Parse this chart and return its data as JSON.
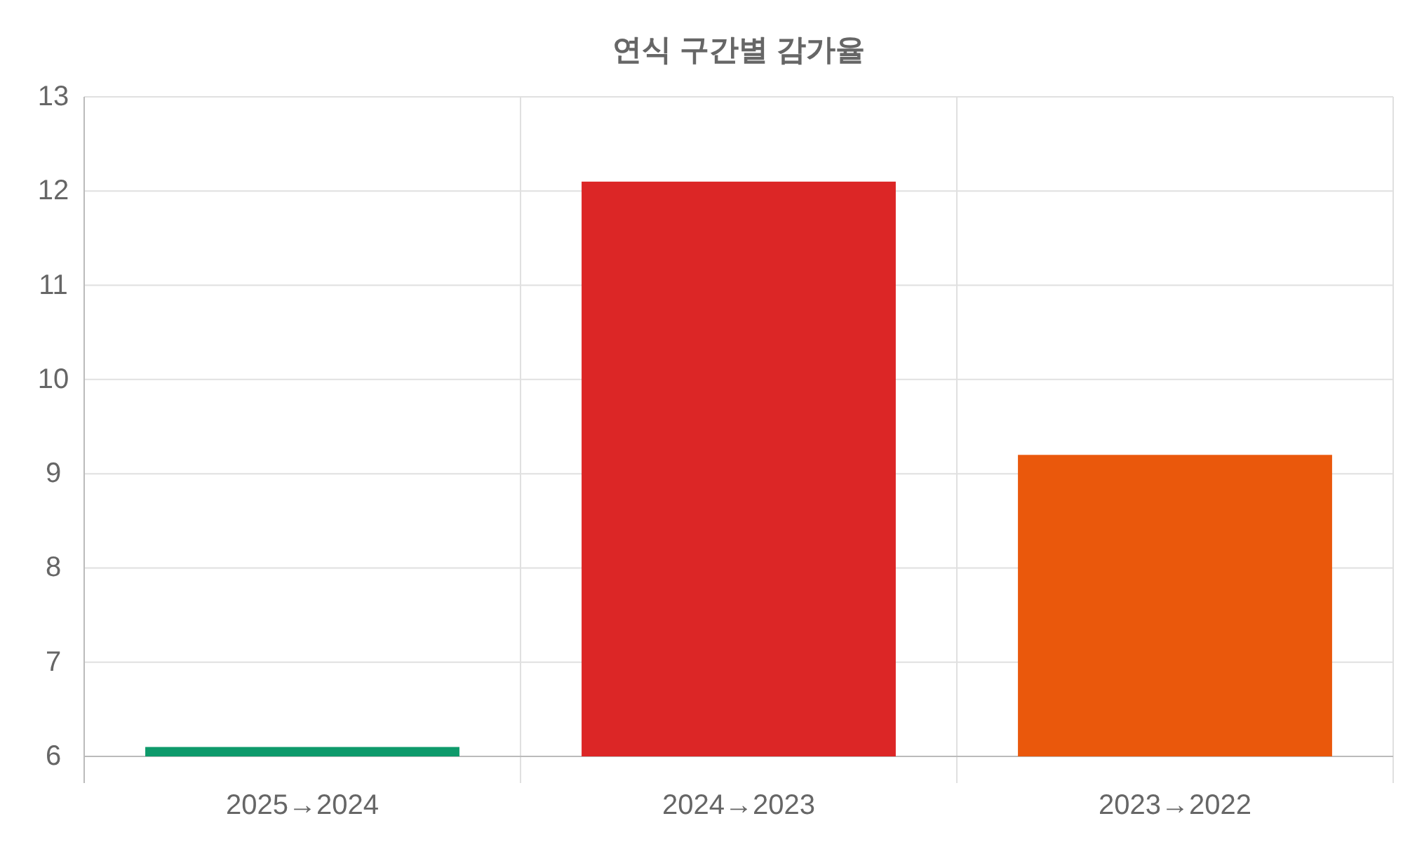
{
  "chart_data": {
    "type": "bar",
    "title": "연식 구간별 감가율",
    "categories": [
      "2025→2024",
      "2024→2023",
      "2023→2022"
    ],
    "values": [
      6.1,
      12.1,
      9.2
    ],
    "colors": [
      "#0e9a6b",
      "#dc2626",
      "#ea580c"
    ],
    "ylim": [
      6,
      13
    ],
    "yticks": [
      6,
      7,
      8,
      9,
      10,
      11,
      12,
      13
    ],
    "grid": true
  }
}
